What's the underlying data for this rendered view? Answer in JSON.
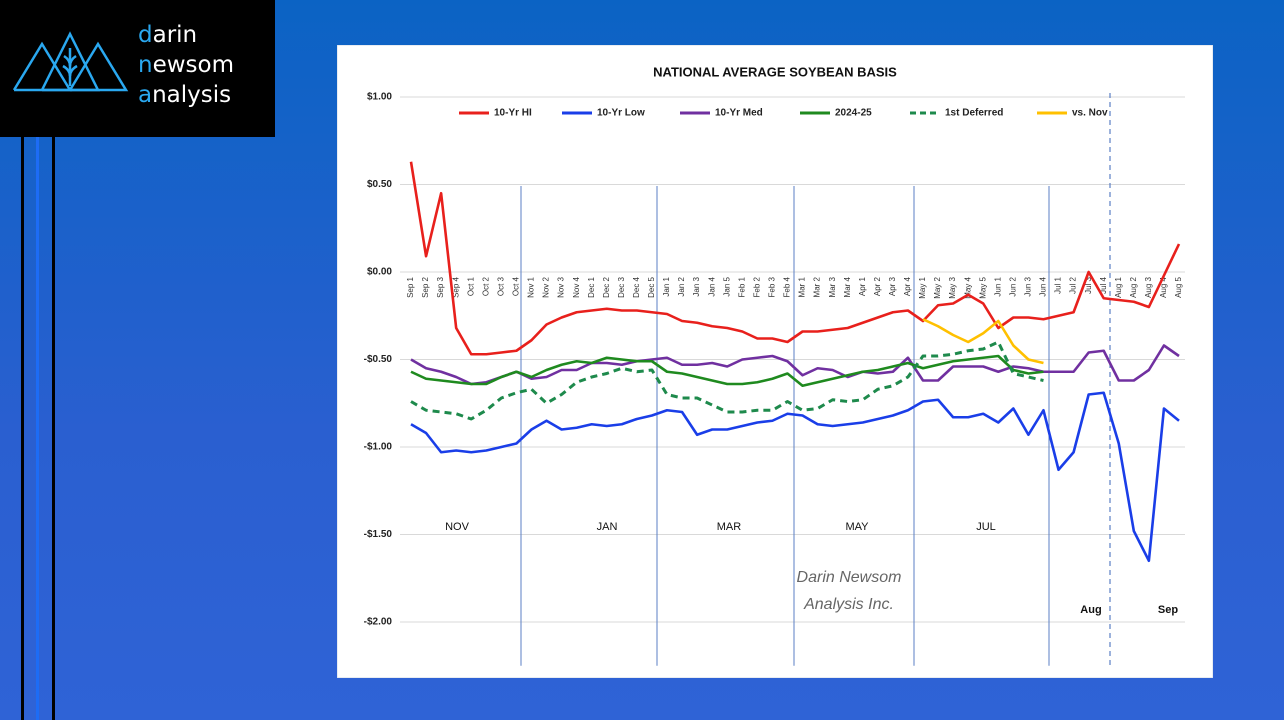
{
  "logo": {
    "lines": [
      "darin",
      "newsom",
      "analysis"
    ]
  },
  "chart_data": {
    "type": "line",
    "title": "NATIONAL AVERAGE SOYBEAN BASIS",
    "categories": [
      "Sep 1",
      "Sep 2",
      "Sep 3",
      "Sep 4",
      "Oct 1",
      "Oct 2",
      "Oct 3",
      "Oct 4",
      "Nov 1",
      "Nov 2",
      "Nov 3",
      "Nov 4",
      "Dec 1",
      "Dec 2",
      "Dec 3",
      "Dec 4",
      "Dec 5",
      "Jan 1",
      "Jan 2",
      "Jan 3",
      "Jan 4",
      "Jan 5",
      "Feb 1",
      "Feb 2",
      "Feb 3",
      "Feb 4",
      "Mar 1",
      "Mar 2",
      "Mar 3",
      "Mar 4",
      "Apr 1",
      "Apr 2",
      "Apr 3",
      "Apr 4",
      "May 1",
      "May 2",
      "May 3",
      "May 4",
      "May 5",
      "Jun 1",
      "Jun 2",
      "Jun 3",
      "Jun 4",
      "Jul 1",
      "Jul 2",
      "Jul 3",
      "Jul 4",
      "Aug 1",
      "Aug 2",
      "Aug 3",
      "Aug 4",
      "Aug 5"
    ],
    "ylim": [
      -2.25,
      1.0
    ],
    "yticks": [
      {
        "value": 1.0,
        "label": "$1.00"
      },
      {
        "value": 0.5,
        "label": "$0.50"
      },
      {
        "value": 0,
        "label": "$0.00"
      },
      {
        "value": -0.5,
        "label": "-$0.50"
      },
      {
        "value": -1.0,
        "label": "-$1.00"
      },
      {
        "value": -1.5,
        "label": "-$1.50"
      },
      {
        "value": -2.0,
        "label": "-$2.00"
      }
    ],
    "grid": true,
    "legend": "top",
    "sections": [
      "NOV",
      "JAN",
      "MAR",
      "MAY",
      "JUL",
      "Aug",
      "Sep"
    ],
    "watermark": [
      "Darin Newsom",
      "Analysis Inc."
    ],
    "series": [
      {
        "name": "10-Yr HI",
        "color": "#e8201c",
        "values": [
          0.63,
          0.09,
          0.45,
          -0.32,
          -0.47,
          -0.47,
          -0.46,
          -0.45,
          -0.39,
          -0.3,
          -0.26,
          -0.23,
          -0.22,
          -0.21,
          -0.22,
          -0.22,
          -0.23,
          -0.24,
          -0.28,
          -0.29,
          -0.31,
          -0.32,
          -0.34,
          -0.38,
          -0.38,
          -0.4,
          -0.34,
          -0.34,
          -0.33,
          -0.32,
          -0.29,
          -0.26,
          -0.23,
          -0.22,
          -0.28,
          -0.19,
          -0.18,
          -0.13,
          -0.18,
          -0.32,
          -0.26,
          -0.26,
          -0.27,
          -0.25,
          -0.23,
          0.0,
          -0.15,
          -0.16,
          -0.17,
          -0.2,
          -0.02,
          0.16
        ]
      },
      {
        "name": "10-Yr Low",
        "color": "#1a3ee8",
        "values": [
          -0.87,
          -0.92,
          -1.03,
          -1.02,
          -1.03,
          -1.02,
          -1.0,
          -0.98,
          -0.9,
          -0.85,
          -0.9,
          -0.89,
          -0.87,
          -0.88,
          -0.87,
          -0.84,
          -0.82,
          -0.79,
          -0.8,
          -0.93,
          -0.9,
          -0.9,
          -0.88,
          -0.86,
          -0.85,
          -0.81,
          -0.82,
          -0.87,
          -0.88,
          -0.87,
          -0.86,
          -0.84,
          -0.82,
          -0.79,
          -0.74,
          -0.73,
          -0.83,
          -0.83,
          -0.81,
          -0.86,
          -0.78,
          -0.93,
          -0.79,
          -1.13,
          -1.03,
          -0.7,
          -0.69,
          -0.98,
          -1.48,
          -1.65,
          -0.78,
          -0.85
        ]
      },
      {
        "name": "10-Yr Med",
        "color": "#7030a0",
        "values": [
          -0.5,
          -0.55,
          -0.57,
          -0.6,
          -0.64,
          -0.63,
          -0.6,
          -0.57,
          -0.61,
          -0.6,
          -0.56,
          -0.56,
          -0.52,
          -0.52,
          -0.53,
          -0.51,
          -0.5,
          -0.49,
          -0.53,
          -0.53,
          -0.52,
          -0.54,
          -0.5,
          -0.49,
          -0.48,
          -0.51,
          -0.59,
          -0.55,
          -0.56,
          -0.6,
          -0.57,
          -0.58,
          -0.57,
          -0.49,
          -0.62,
          -0.62,
          -0.54,
          -0.54,
          -0.54,
          -0.57,
          -0.54,
          -0.55,
          -0.57,
          -0.57,
          -0.57,
          -0.46,
          -0.45,
          -0.62,
          -0.62,
          -0.56,
          -0.42,
          -0.48
        ]
      },
      {
        "name": "2024-25",
        "color": "#1f8a1f",
        "values": [
          -0.57,
          -0.61,
          -0.62,
          -0.63,
          -0.64,
          -0.64,
          -0.6,
          -0.57,
          -0.6,
          -0.56,
          -0.53,
          -0.51,
          -0.52,
          -0.49,
          -0.5,
          -0.51,
          -0.51,
          -0.57,
          -0.58,
          -0.6,
          -0.62,
          -0.64,
          -0.64,
          -0.63,
          -0.61,
          -0.58,
          -0.65,
          -0.63,
          -0.61,
          -0.59,
          -0.57,
          -0.56,
          -0.54,
          -0.52,
          -0.55,
          -0.53,
          -0.51,
          -0.5,
          -0.49,
          -0.48,
          -0.56,
          -0.58,
          -0.57,
          null,
          null,
          null,
          null,
          null,
          null,
          null,
          null,
          null
        ]
      },
      {
        "name": "1st Deferred",
        "color": "#1e8a4c",
        "dashed": true,
        "values": [
          -0.74,
          -0.79,
          -0.8,
          -0.81,
          -0.84,
          -0.79,
          -0.72,
          -0.69,
          -0.67,
          -0.75,
          -0.7,
          -0.63,
          -0.6,
          -0.58,
          -0.55,
          -0.57,
          -0.56,
          -0.7,
          -0.72,
          -0.72,
          -0.76,
          -0.8,
          -0.8,
          -0.79,
          -0.79,
          -0.74,
          -0.79,
          -0.78,
          -0.73,
          -0.74,
          -0.73,
          -0.67,
          -0.65,
          -0.6,
          -0.48,
          -0.48,
          -0.47,
          -0.45,
          -0.44,
          -0.4,
          -0.58,
          -0.6,
          -0.62,
          null,
          null,
          null,
          null,
          null,
          null,
          null,
          null,
          null
        ]
      },
      {
        "name": "vs. Nov",
        "color": "#ffc000",
        "values": [
          null,
          null,
          null,
          null,
          null,
          null,
          null,
          null,
          null,
          null,
          null,
          null,
          null,
          null,
          null,
          null,
          null,
          null,
          null,
          null,
          null,
          null,
          null,
          null,
          null,
          null,
          null,
          null,
          null,
          null,
          null,
          null,
          null,
          null,
          -0.27,
          -0.31,
          -0.36,
          -0.4,
          -0.35,
          -0.28,
          -0.42,
          -0.5,
          -0.52,
          null,
          null,
          null,
          null,
          null,
          null,
          null,
          null,
          null
        ]
      }
    ]
  }
}
